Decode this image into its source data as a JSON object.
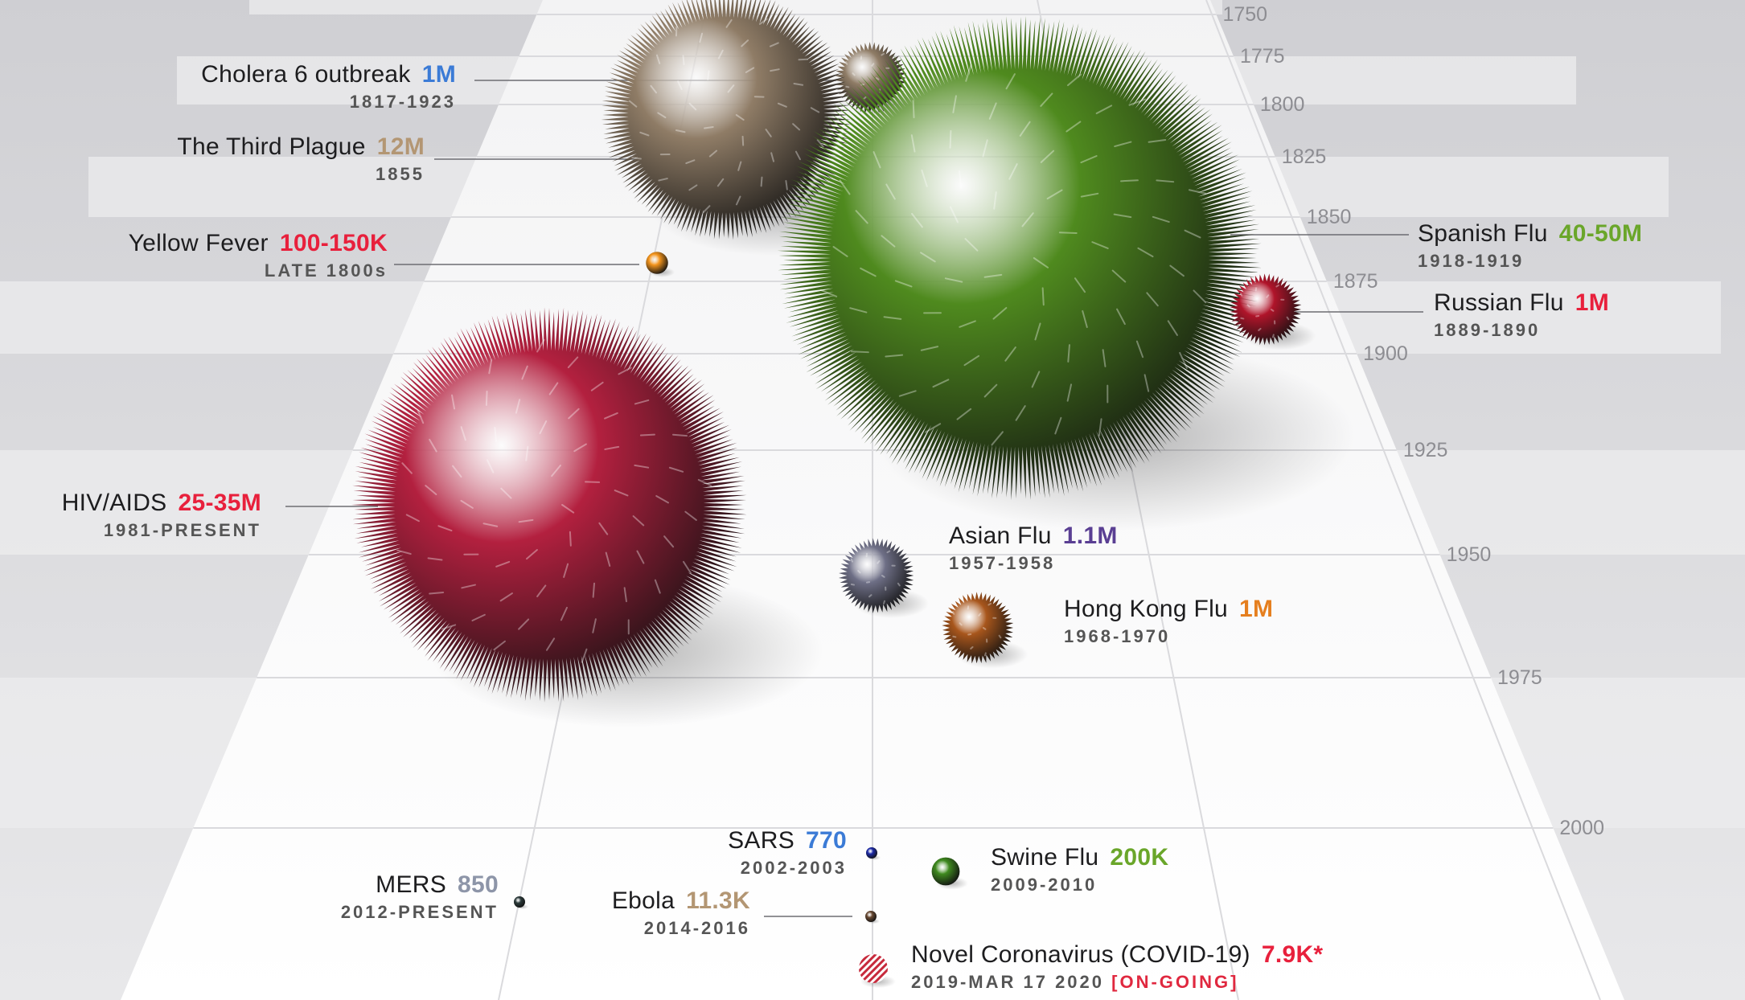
{
  "colors": {
    "blue": "#3b7bd6",
    "tan": "#b39673",
    "red": "#e8203c",
    "green": "#6aa62a",
    "purple": "#5a3f93",
    "orange": "#e57f1f",
    "ongoing": "#e0283f"
  },
  "chart_data": {
    "type": "bubble",
    "title": "",
    "xlabel": "",
    "ylabel": "",
    "y_axis": {
      "orientation": "top-to-bottom",
      "ticks": [
        1750,
        1775,
        1800,
        1825,
        1850,
        1875,
        1900,
        1925,
        1950,
        1975,
        2000
      ],
      "range": [
        1750,
        2020
      ]
    },
    "size_measure": "death toll",
    "grid": true,
    "series": [
      {
        "name": "Cholera 6 outbreak",
        "value_label": "1M",
        "dates": "1817-1923",
        "deaths": 1000000,
        "color": "#8f7c66",
        "label_color": "#3b7bd6"
      },
      {
        "name": "The Third Plague",
        "value_label": "12M",
        "dates": "1855",
        "deaths": 12000000,
        "color": "#8f7c66",
        "label_color": "#b39673"
      },
      {
        "name": "Yellow Fever",
        "value_label": "100-150K",
        "dates": "LATE 1800s",
        "deaths": 125000,
        "color": "#f4951d",
        "label_color": "#e8203c"
      },
      {
        "name": "Spanish Flu",
        "value_label": "40-50M",
        "dates": "1918-1919",
        "deaths": 45000000,
        "color": "#4f8a1e",
        "label_color": "#6aa62a"
      },
      {
        "name": "Russian Flu",
        "value_label": "1M",
        "dates": "1889-1890",
        "deaths": 1000000,
        "color": "#b0142a",
        "label_color": "#e8203c"
      },
      {
        "name": "HIV/AIDS",
        "value_label": "25-35M",
        "dates": "1981-PRESENT",
        "deaths": 30000000,
        "color": "#b3203f",
        "label_color": "#e8203c"
      },
      {
        "name": "Asian Flu",
        "value_label": "1.1M",
        "dates": "1957-1958",
        "deaths": 1100000,
        "color": "#6e6f86",
        "label_color": "#5a3f93"
      },
      {
        "name": "Hong Kong Flu",
        "value_label": "1M",
        "dates": "1968-1970",
        "deaths": 1000000,
        "color": "#a8561c",
        "label_color": "#e57f1f"
      },
      {
        "name": "SARS",
        "value_label": "770",
        "dates": "2002-2003",
        "deaths": 770,
        "color": "#1c2aa8",
        "label_color": "#3b7bd6"
      },
      {
        "name": "Swine Flu",
        "value_label": "200K",
        "dates": "2009-2010",
        "deaths": 200000,
        "color": "#3f8a1f",
        "label_color": "#6aa62a"
      },
      {
        "name": "MERS",
        "value_label": "850",
        "dates": "2012-PRESENT",
        "deaths": 850,
        "color": "#2c3b3b",
        "label_color": "#8d95a8"
      },
      {
        "name": "Ebola",
        "value_label": "11.3K",
        "dates": "2014-2016",
        "deaths": 11300,
        "color": "#6a4a33",
        "label_color": "#b39673"
      },
      {
        "name": "Novel Coronavirus (COVID-19)",
        "value_label": "7.9K*",
        "dates": "2019-MAR 17 2020",
        "status": "[ON-GOING]",
        "deaths": 7900,
        "color": "#c72a3c",
        "label_color": "#e8203c"
      }
    ]
  }
}
